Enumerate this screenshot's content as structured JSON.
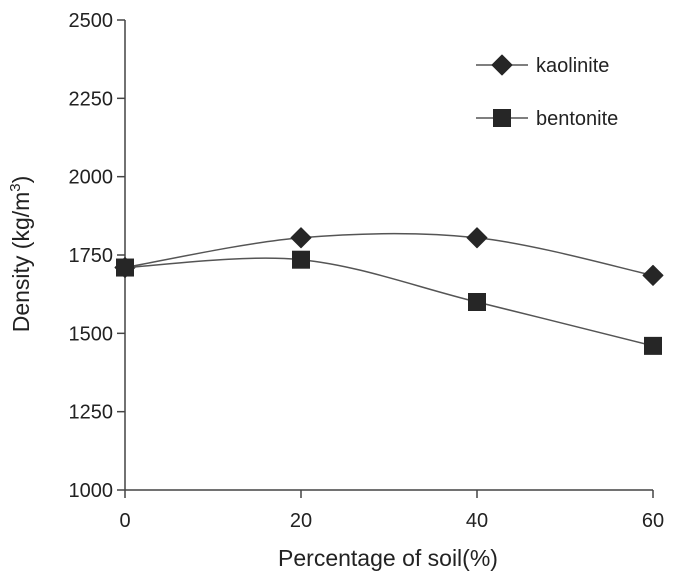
{
  "chart_data": {
    "type": "line",
    "title": "",
    "xlabel": "Percentage of soil(%)",
    "ylabel_main": "Density (kg/m",
    "ylabel_sup": "3",
    "ylabel_close": ")",
    "x": [
      0,
      20,
      40,
      60
    ],
    "x_ticks": [
      "0",
      "20",
      "40",
      "60"
    ],
    "xlim": [
      0,
      60
    ],
    "y_ticks": [
      "1000",
      "1250",
      "1500",
      "1750",
      "2000",
      "2250",
      "2500"
    ],
    "ylim": [
      1000,
      2500
    ],
    "grid": false,
    "smooth": true,
    "legend_position": "top-right",
    "series": [
      {
        "name": "kaolinite",
        "marker": "diamond",
        "values": [
          1710,
          1805,
          1805,
          1685
        ]
      },
      {
        "name": "bentonite",
        "marker": "square",
        "values": [
          1710,
          1735,
          1600,
          1460
        ]
      }
    ],
    "colors": {
      "line": "#555555",
      "marker": "#262626",
      "axis": "#444444"
    }
  }
}
